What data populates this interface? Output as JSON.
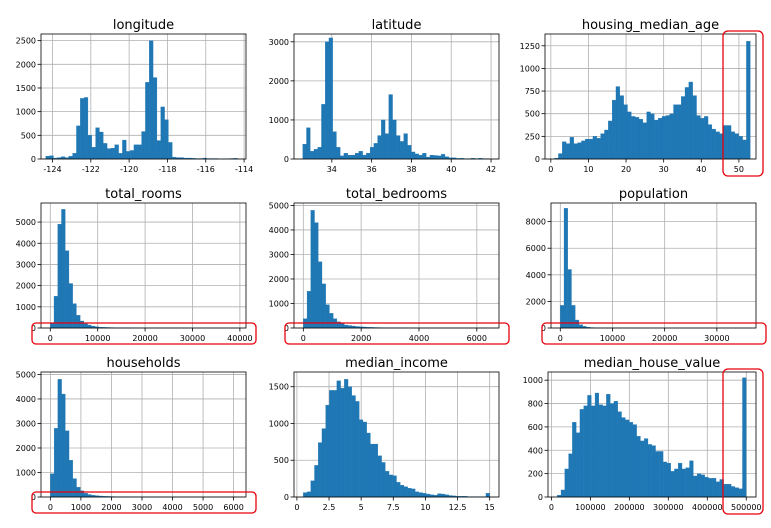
{
  "chart_data": [
    {
      "type": "bar",
      "title": "longitude",
      "xlim": [
        -124.6,
        -113.9
      ],
      "ylim": [
        0,
        2640
      ],
      "xticks": [
        -124,
        -122,
        -120,
        -118,
        -116,
        -114
      ],
      "yticks": [
        0,
        500,
        1000,
        1500,
        2000,
        2500
      ],
      "grid": true,
      "bins": {
        "start": -124.35,
        "width": 0.2,
        "values": [
          60,
          70,
          20,
          30,
          50,
          30,
          60,
          120,
          700,
          1280,
          1300,
          500,
          250,
          660,
          570,
          330,
          220,
          230,
          300,
          120,
          400,
          160,
          180,
          300,
          300,
          580,
          1620,
          2500,
          1720,
          390,
          1100,
          830,
          350,
          40,
          30,
          30,
          20,
          20,
          15,
          10,
          10,
          20,
          10,
          10,
          10,
          0,
          5,
          5,
          10,
          15
        ]
      },
      "highlight": null
    },
    {
      "type": "bar",
      "title": "latitude",
      "xlim": [
        32.1,
        42.4
      ],
      "ylim": [
        0,
        3200
      ],
      "xticks": [
        34,
        36,
        38,
        40,
        42
      ],
      "yticks": [
        0,
        1000,
        2000,
        3000
      ],
      "grid": true,
      "bins": {
        "start": 32.54,
        "width": 0.188,
        "values": [
          380,
          800,
          200,
          250,
          300,
          1400,
          3000,
          3100,
          700,
          300,
          80,
          150,
          100,
          100,
          150,
          200,
          100,
          150,
          300,
          400,
          600,
          1000,
          650,
          1650,
          1000,
          600,
          450,
          650,
          350,
          180,
          130,
          100,
          150,
          50,
          100,
          90,
          80,
          120,
          60,
          30,
          30,
          15,
          20,
          10,
          10,
          20,
          10,
          20,
          10,
          10
        ]
      },
      "highlight": null
    },
    {
      "type": "bar",
      "title": "housing_median_age",
      "xlim": [
        -1.55,
        54.55
      ],
      "ylim": [
        0,
        1380
      ],
      "xticks": [
        0,
        10,
        20,
        30,
        40,
        50
      ],
      "yticks": [
        0,
        250,
        500,
        750,
        1000,
        1250
      ],
      "grid": true,
      "bins": {
        "start": 1,
        "width": 1.02,
        "values": [
          10,
          60,
          190,
          170,
          240,
          170,
          180,
          200,
          220,
          220,
          250,
          230,
          280,
          320,
          420,
          650,
          800,
          700,
          600,
          520,
          470,
          460,
          440,
          400,
          520,
          500,
          430,
          450,
          470,
          480,
          500,
          600,
          600,
          690,
          790,
          850,
          700,
          480,
          450,
          470,
          380,
          330,
          300,
          280,
          370,
          370,
          300,
          280,
          250,
          210,
          1300
        ]
      },
      "highlight": "right-edge"
    },
    {
      "type": "bar",
      "title": "total_rooms",
      "xlim": [
        -1960,
        41290
      ],
      "ylim": [
        0,
        5900
      ],
      "xticks": [
        0,
        10000,
        20000,
        30000,
        40000
      ],
      "yticks": [
        0,
        1000,
        2000,
        3000,
        4000,
        5000
      ],
      "grid": true,
      "bins": {
        "start": 2,
        "width": 786.7,
        "values": [
          250,
          1500,
          4900,
          5600,
          3650,
          2100,
          1150,
          600,
          330,
          200,
          140,
          90,
          60,
          40,
          30,
          25,
          20,
          15,
          12,
          10,
          8,
          8,
          6,
          5,
          4,
          3,
          3,
          2,
          2,
          2,
          1,
          1,
          1,
          1,
          1,
          1,
          1,
          0,
          0,
          0,
          0,
          0,
          0,
          0,
          0,
          0,
          0,
          0,
          0,
          1
        ]
      },
      "highlight": "bottom"
    },
    {
      "type": "bar",
      "title": "total_bedrooms",
      "xlim": [
        -322,
        6767
      ],
      "ylim": [
        0,
        5100
      ],
      "xticks": [
        0,
        2000,
        4000,
        6000
      ],
      "yticks": [
        0,
        1000,
        2000,
        3000,
        4000,
        5000
      ],
      "grid": true,
      "bins": {
        "start": 1,
        "width": 128.9,
        "values": [
          380,
          1500,
          4800,
          4300,
          2700,
          1800,
          950,
          600,
          380,
          250,
          180,
          120,
          100,
          80,
          60,
          50,
          40,
          30,
          25,
          20,
          18,
          15,
          12,
          10,
          9,
          8,
          7,
          6,
          5,
          5,
          4,
          4,
          3,
          3,
          3,
          2,
          2,
          2,
          2,
          2,
          1,
          1,
          1,
          1,
          1,
          1,
          1,
          1,
          1,
          1
        ]
      },
      "highlight": "bottom"
    },
    {
      "type": "bar",
      "title": "population",
      "xlim": [
        -1780,
        37500
      ],
      "ylim": [
        0,
        9400
      ],
      "xticks": [
        0,
        10000,
        20000,
        30000
      ],
      "yticks": [
        0,
        2000,
        4000,
        6000,
        8000
      ],
      "grid": true,
      "bins": {
        "start": 3,
        "width": 713.6,
        "values": [
          1700,
          9000,
          4400,
          1700,
          600,
          250,
          120,
          60,
          35,
          20,
          12,
          8,
          5,
          4,
          3,
          2,
          2,
          1,
          1,
          1,
          1,
          0,
          0,
          0,
          0,
          0,
          0,
          0,
          0,
          0,
          0,
          0,
          0,
          0,
          0,
          0,
          0,
          0,
          0,
          0,
          0,
          0,
          0,
          0,
          0,
          0,
          0,
          0,
          0,
          1
        ]
      },
      "highlight": "bottom"
    },
    {
      "type": "bar",
      "title": "households",
      "xlim": [
        -307,
        6406
      ],
      "ylim": [
        0,
        5100
      ],
      "xticks": [
        0,
        1000,
        2000,
        3000,
        4000,
        5000,
        6000
      ],
      "yticks": [
        0,
        1000,
        2000,
        3000,
        4000,
        5000
      ],
      "grid": true,
      "bins": {
        "start": 1,
        "width": 122.1,
        "values": [
          950,
          2800,
          4800,
          4200,
          2700,
          1500,
          750,
          400,
          250,
          150,
          100,
          70,
          55,
          40,
          30,
          25,
          20,
          15,
          12,
          10,
          8,
          7,
          6,
          5,
          4,
          4,
          3,
          3,
          3,
          2,
          2,
          2,
          2,
          2,
          1,
          1,
          1,
          1,
          1,
          1,
          1,
          1,
          1,
          1,
          1,
          1,
          1,
          1,
          1,
          1
        ]
      },
      "highlight": "bottom"
    },
    {
      "type": "bar",
      "title": "median_income",
      "xlim": [
        -0.225,
        15.725
      ],
      "ylim": [
        0,
        1700
      ],
      "xticks": [
        0.0,
        2.5,
        5.0,
        7.5,
        10.0,
        12.5,
        15.0
      ],
      "yticks": [
        0,
        500,
        1000,
        1500
      ],
      "grid": true,
      "bins": {
        "start": 0.4999,
        "width": 0.29,
        "values": [
          60,
          70,
          220,
          430,
          740,
          930,
          1250,
          1450,
          1450,
          1580,
          1480,
          1600,
          1500,
          1380,
          1300,
          1050,
          1020,
          870,
          720,
          720,
          560,
          470,
          350,
          300,
          290,
          200,
          160,
          140,
          120,
          110,
          70,
          60,
          50,
          40,
          30,
          25,
          45,
          40,
          30,
          20,
          15,
          10,
          10,
          10,
          5,
          5,
          5,
          5,
          5,
          50
        ]
      },
      "highlight": null
    },
    {
      "type": "bar",
      "title": "median_house_value",
      "xlim": [
        -8749,
        524999
      ],
      "ylim": [
        0,
        1070
      ],
      "xticks": [
        0,
        100000,
        200000,
        300000,
        400000,
        500000
      ],
      "yticks": [
        0,
        200,
        400,
        600,
        800,
        1000
      ],
      "grid": true,
      "bins": {
        "start": 14999,
        "width": 9700,
        "values": [
          15,
          60,
          240,
          370,
          640,
          550,
          750,
          780,
          870,
          780,
          890,
          790,
          780,
          880,
          800,
          820,
          730,
          680,
          660,
          640,
          620,
          520,
          480,
          500,
          450,
          440,
          390,
          390,
          300,
          290,
          220,
          240,
          290,
          240,
          250,
          310,
          180,
          200,
          190,
          170,
          160,
          160,
          130,
          150,
          110,
          110,
          90,
          80,
          70,
          1020
        ]
      },
      "highlight": "right-edge"
    }
  ]
}
